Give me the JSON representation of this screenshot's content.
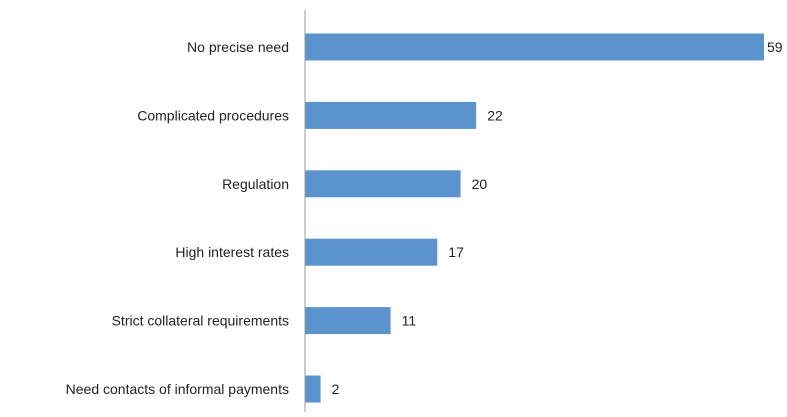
{
  "chart_data": {
    "type": "bar",
    "orientation": "horizontal",
    "title": "",
    "xlabel": "",
    "ylabel": "",
    "categories": [
      "No precise need",
      "Complicated procedures",
      "Regulation",
      "High interest rates",
      "Strict collateral requirements",
      "Need contacts of informal payments"
    ],
    "values": [
      59,
      22,
      20,
      17,
      11,
      2
    ],
    "xlim": [
      0,
      59
    ],
    "grid": false,
    "legend": "none",
    "bar_color": "#5b93cc",
    "axis_color": "#9a9a9a"
  }
}
